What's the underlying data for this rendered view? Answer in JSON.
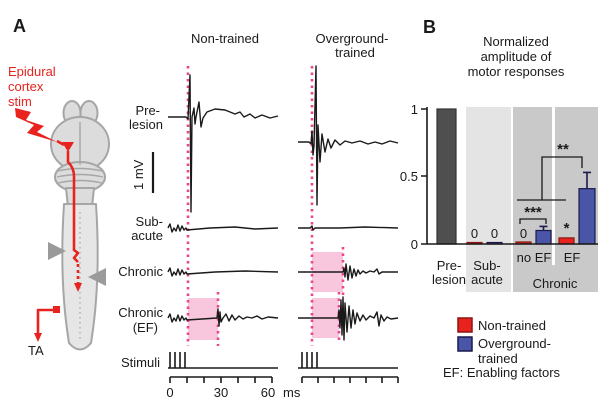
{
  "colors": {
    "accent_red": "#e8231e",
    "accent_blue": "#4a55a8",
    "blue_border": "#1a1a4e",
    "red_border": "#8c1410",
    "pink_fill": "#f8c6dd",
    "pink_dotted_line": "#e8478d",
    "prelesion_bar": "#4f4f4f",
    "subacute_panel": "#e4e4e4",
    "chronic_panel": "#c9c9c9",
    "schematic_gray": "#dcdcdc",
    "trace_black": "#1a1a1a"
  },
  "panelA": {
    "label": "A",
    "epidural_line1": "Epidural",
    "epidural_line2": "cortex",
    "epidural_line3": "stim",
    "ta": "TA",
    "col_nontrained": "Non-trained",
    "col_overground_line1": "Overground-",
    "col_overground_line2": "trained",
    "row_prelesion_line1": "Pre-",
    "row_prelesion_line2": "lesion",
    "scalebar": "1 mV",
    "row_subacute_line1": "Sub-",
    "row_subacute_line2": "acute",
    "row_chronic": "Chronic",
    "row_chronicef_line1": "Chronic",
    "row_chronicef_line2": "(EF)",
    "row_stimuli": "Stimuli",
    "axis_tick0": "0",
    "axis_tick30": "30",
    "axis_tick60": "60",
    "axis_unit": "ms"
  },
  "panelB": {
    "label": "B",
    "title_line1": "Normalized",
    "title_line2": "amplitude of",
    "title_line3": "motor responses",
    "ytick_1": "1",
    "ytick_05": "0.5",
    "ytick_0": "0",
    "xlabel_pre_1": "Pre-",
    "xlabel_pre_2": "lesion",
    "xlabel_sub_1": "Sub-",
    "xlabel_sub_2": "acute",
    "xlabel_noef": "no EF",
    "xlabel_ef": "EF",
    "xlabel_chronic": "Chronic",
    "sig_noef": "***",
    "sig_group": "**"
  },
  "legend": {
    "nontrained": "Non-trained",
    "overground_line1": "Overground-",
    "overground_line2": "trained",
    "ef": "EF: Enabling factors"
  },
  "chart_data": {
    "type": "bar",
    "title": "Normalized amplitude of motor responses",
    "xlabel": "",
    "ylabel": "",
    "ylim": [
      0,
      1
    ],
    "yticks": [
      0,
      0.5,
      1
    ],
    "grid": false,
    "categories": [
      "Pre-lesion",
      "Sub-acute",
      "Chronic no EF",
      "Chronic EF"
    ],
    "series": [
      {
        "name": "Pre-lesion",
        "color": "#4f4f4f",
        "border": "#333333",
        "values": [
          1.0,
          null,
          null,
          null
        ]
      },
      {
        "name": "Non-trained",
        "color": "#e8231e",
        "border": "#8c1410",
        "values": [
          null,
          0.01,
          0.015,
          0.045
        ],
        "annotations": [
          null,
          "0",
          "0",
          "*"
        ]
      },
      {
        "name": "Overground-trained",
        "color": "#4a55a8",
        "border": "#1a1a4e",
        "values": [
          null,
          0.01,
          0.1,
          0.41
        ],
        "errors": [
          null,
          null,
          0.03,
          0.12
        ],
        "annotations": [
          null,
          "0",
          null,
          null
        ]
      }
    ],
    "significance": [
      {
        "label": "***",
        "comparison": "Chronic no EF: Non-trained vs Overground-trained"
      },
      {
        "label": "*",
        "comparison": "Chronic EF: Non-trained vs Pre-lesion"
      },
      {
        "label": "**",
        "comparison": "Chronic no EF group vs Chronic EF Overground-trained"
      }
    ],
    "legend_position": "bottom-right"
  }
}
